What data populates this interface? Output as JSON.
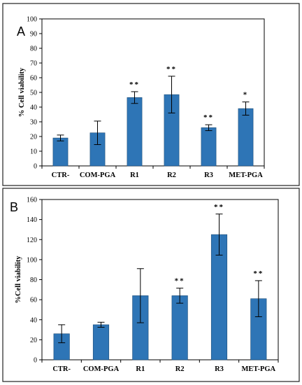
{
  "chart_data": [
    {
      "type": "bar",
      "panel_label": "A",
      "categories": [
        "CTR-",
        "COM-PGA",
        "R1",
        "R2",
        "R3",
        "MET-PGA"
      ],
      "values": [
        19,
        22.5,
        46.5,
        48.5,
        26,
        39
      ],
      "errors": [
        2,
        8,
        4,
        12.5,
        2,
        4.5
      ],
      "significance": [
        "",
        "",
        "**",
        "**",
        "**",
        "*"
      ],
      "ylabel": "% Cell viability",
      "ylim": [
        0,
        100
      ],
      "yticks": [
        0,
        10,
        20,
        30,
        40,
        50,
        60,
        70,
        80,
        90,
        100
      ],
      "bar_color": "#2e75b6",
      "grid": false
    },
    {
      "type": "bar",
      "panel_label": "B",
      "categories": [
        "CTR-",
        "COM-PGA",
        "R1",
        "R2",
        "R3",
        "MET-PGA"
      ],
      "values": [
        26,
        35,
        64,
        64,
        125,
        61
      ],
      "errors": [
        9,
        2.5,
        27,
        7.5,
        20.5,
        18
      ],
      "significance": [
        "",
        "",
        "",
        "**",
        "**",
        "**"
      ],
      "ylabel": "%Cell viability",
      "ylim": [
        0,
        160
      ],
      "yticks": [
        0,
        20,
        40,
        60,
        80,
        100,
        120,
        140,
        160
      ],
      "bar_color": "#2e75b6",
      "grid": false
    }
  ]
}
